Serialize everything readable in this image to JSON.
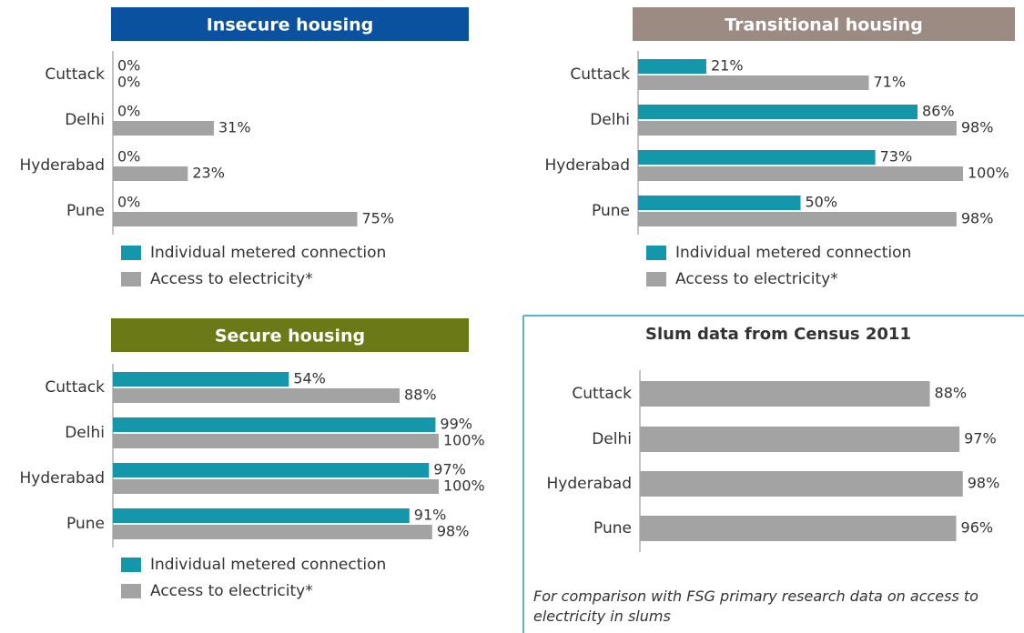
{
  "chart_data": [
    {
      "type": "bar",
      "orientation": "horizontal",
      "title": "Insecure housing",
      "header_color": "#0a52a0",
      "xlim": [
        0,
        100
      ],
      "categories": [
        "Cuttack",
        "Delhi",
        "Hyderabad",
        "Pune"
      ],
      "series": [
        {
          "name": "Individual metered connection",
          "color": "#1597ab",
          "values": [
            0,
            0,
            0,
            0
          ],
          "value_labels": [
            "0%",
            "0%",
            "0%",
            "0%"
          ]
        },
        {
          "name": "Access to electricity*",
          "color": "#a3a3a3",
          "values": [
            0,
            31,
            23,
            75
          ],
          "value_labels": [
            "0%",
            "31%",
            "23%",
            "75%"
          ]
        }
      ]
    },
    {
      "type": "bar",
      "orientation": "horizontal",
      "title": "Transitional housing",
      "header_color": "#9b8b83",
      "xlim": [
        0,
        100
      ],
      "categories": [
        "Cuttack",
        "Delhi",
        "Hyderabad",
        "Pune"
      ],
      "series": [
        {
          "name": "Individual metered connection",
          "color": "#1597ab",
          "values": [
            21,
            86,
            73,
            50
          ],
          "value_labels": [
            "21%",
            "86%",
            "73%",
            "50%"
          ]
        },
        {
          "name": "Access to electricity*",
          "color": "#a3a3a3",
          "values": [
            71,
            98,
            100,
            98
          ],
          "value_labels": [
            "71%",
            "98%",
            "100%",
            "98%"
          ]
        }
      ]
    },
    {
      "type": "bar",
      "orientation": "horizontal",
      "title": "Secure housing",
      "header_color": "#6b7a17",
      "xlim": [
        0,
        100
      ],
      "categories": [
        "Cuttack",
        "Delhi",
        "Hyderabad",
        "Pune"
      ],
      "series": [
        {
          "name": "Individual metered connection",
          "color": "#1597ab",
          "values": [
            54,
            99,
            97,
            91
          ],
          "value_labels": [
            "54%",
            "99%",
            "97%",
            "91%"
          ]
        },
        {
          "name": "Access to electricity*",
          "color": "#a3a3a3",
          "values": [
            88,
            100,
            100,
            98
          ],
          "value_labels": [
            "88%",
            "100%",
            "100%",
            "98%"
          ]
        }
      ]
    },
    {
      "type": "bar",
      "orientation": "horizontal",
      "title": "Slum data from Census 2011",
      "xlim": [
        0,
        100
      ],
      "categories": [
        "Cuttack",
        "Delhi",
        "Hyderabad",
        "Pune"
      ],
      "series": [
        {
          "color": "#a3a3a3",
          "values": [
            88,
            97,
            98,
            96
          ],
          "value_labels": [
            "88%",
            "97%",
            "98%",
            "96%"
          ]
        }
      ],
      "note": "For comparison with FSG primary research data on access to electricity in slums"
    }
  ]
}
